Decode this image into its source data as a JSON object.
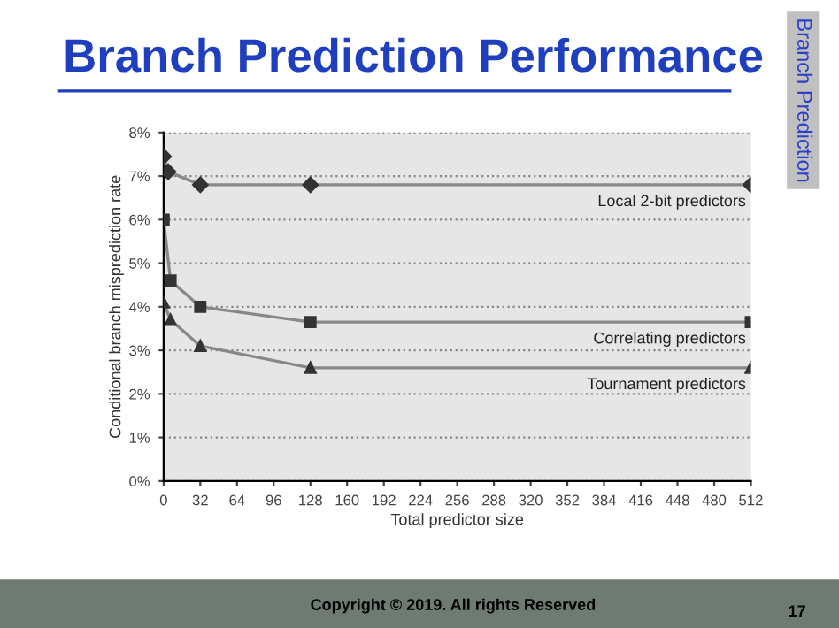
{
  "chart_data": {
    "type": "line",
    "title": "Branch Prediction Performance",
    "xlabel": "Total predictor size",
    "ylabel": "Conditional branch misprediction rate",
    "xlim": [
      0,
      512
    ],
    "xticks": [
      0,
      32,
      64,
      96,
      128,
      160,
      192,
      224,
      256,
      288,
      320,
      352,
      384,
      416,
      448,
      480,
      512
    ],
    "ylim": [
      0,
      8
    ],
    "yticks": [
      {
        "value": 0,
        "label": "0%"
      },
      {
        "value": 1,
        "label": "1%"
      },
      {
        "value": 2,
        "label": "2%"
      },
      {
        "value": 3,
        "label": "3%"
      },
      {
        "value": 4,
        "label": "4%"
      },
      {
        "value": 5,
        "label": "5%"
      },
      {
        "value": 6,
        "label": "6%"
      },
      {
        "value": 7,
        "label": "7%"
      },
      {
        "value": 8,
        "label": "8%"
      }
    ],
    "grid": "y",
    "legend": false,
    "line_style": "solid",
    "series": [
      {
        "name": "Local 2-bit predictors",
        "color": "#333333",
        "marker": "diamond",
        "x": [
          0,
          4,
          32,
          128,
          512
        ],
        "values": [
          7.45,
          7.1,
          6.8,
          6.8,
          6.8
        ]
      },
      {
        "name": "Correlating predictors",
        "color": "#333333",
        "marker": "square",
        "x": [
          0,
          6,
          32,
          128,
          512
        ],
        "values": [
          6.0,
          4.6,
          4.0,
          3.65,
          3.65
        ]
      },
      {
        "name": "Tournament predictors",
        "color": "#333333",
        "marker": "triangle",
        "x": [
          0,
          6,
          32,
          128,
          512
        ],
        "values": [
          4.1,
          3.7,
          3.1,
          2.6,
          2.6
        ]
      }
    ],
    "annotations": [
      "Branch Prediction",
      "Copyright © 2019. All rights Reserved",
      "17"
    ]
  }
}
